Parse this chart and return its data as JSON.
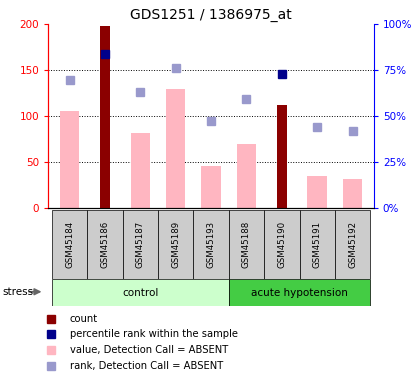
{
  "title": "GDS1251 / 1386975_at",
  "samples": [
    "GSM45184",
    "GSM45186",
    "GSM45187",
    "GSM45189",
    "GSM45193",
    "GSM45188",
    "GSM45190",
    "GSM45191",
    "GSM45192"
  ],
  "n_control": 5,
  "n_acute": 4,
  "red_bars": [
    0,
    198,
    0,
    0,
    0,
    0,
    112,
    0,
    0
  ],
  "pink_bars": [
    106,
    0,
    82,
    130,
    46,
    70,
    0,
    35,
    32
  ],
  "blue_squares": [
    0,
    168,
    0,
    0,
    0,
    0,
    146,
    0,
    0
  ],
  "light_blue_squares": [
    140,
    0,
    126,
    152,
    95,
    119,
    0,
    88,
    84
  ],
  "ylim_left": [
    0,
    200
  ],
  "left_ticks": [
    0,
    50,
    100,
    150,
    200
  ],
  "left_tick_labels": [
    "0",
    "50",
    "100",
    "150",
    "200"
  ],
  "right_ticks": [
    0,
    25,
    50,
    75,
    100
  ],
  "right_tick_labels": [
    "0%",
    "25%",
    "50%",
    "75%",
    "100%"
  ],
  "title_fontsize": 10,
  "red_bar_color": "#8B0000",
  "pink_bar_color": "#FFB6C1",
  "blue_sq_color": "#00008B",
  "light_blue_sq_color": "#9999CC",
  "control_color_light": "#CCFFCC",
  "control_color_dark": "#55CC55",
  "acute_color": "#44CC44",
  "label_bg_color": "#CCCCCC"
}
